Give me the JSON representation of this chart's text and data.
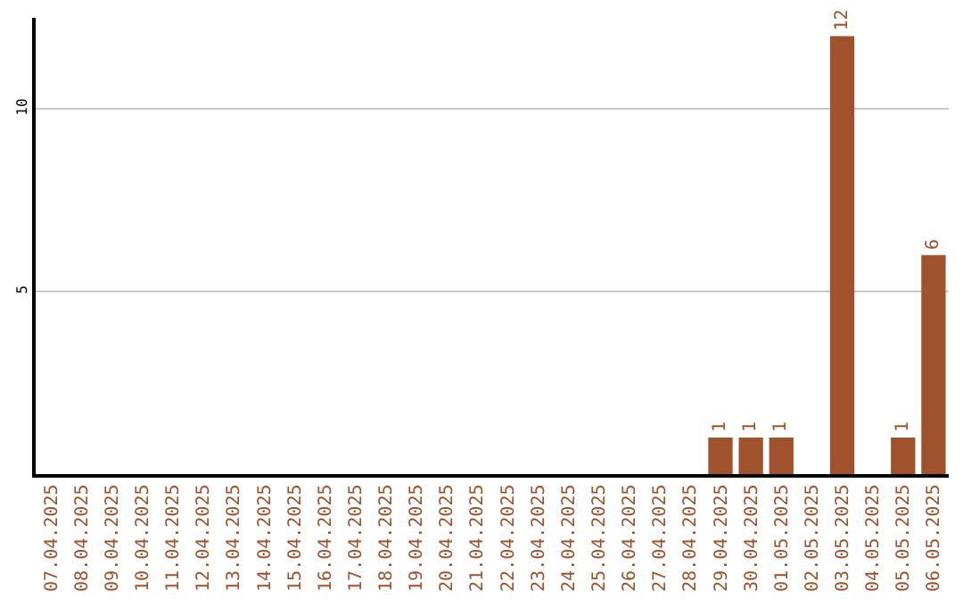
{
  "chart_data": {
    "type": "bar",
    "categories": [
      "07.04.2025",
      "08.04.2025",
      "09.04.2025",
      "10.04.2025",
      "11.04.2025",
      "12.04.2025",
      "13.04.2025",
      "14.04.2025",
      "15.04.2025",
      "16.04.2025",
      "17.04.2025",
      "18.04.2025",
      "19.04.2025",
      "20.04.2025",
      "21.04.2025",
      "22.04.2025",
      "23.04.2025",
      "24.04.2025",
      "25.04.2025",
      "26.04.2025",
      "27.04.2025",
      "28.04.2025",
      "29.04.2025",
      "30.04.2025",
      "01.05.2025",
      "02.05.2025",
      "03.05.2025",
      "04.05.2025",
      "05.05.2025",
      "06.05.2025"
    ],
    "values": [
      0,
      0,
      0,
      0,
      0,
      0,
      0,
      0,
      0,
      0,
      0,
      0,
      0,
      0,
      0,
      0,
      0,
      0,
      0,
      0,
      0,
      0,
      1,
      1,
      1,
      0,
      12,
      0,
      1,
      6
    ],
    "value_labels": [
      null,
      null,
      null,
      null,
      null,
      null,
      null,
      null,
      null,
      null,
      null,
      null,
      null,
      null,
      null,
      null,
      null,
      null,
      null,
      null,
      null,
      null,
      "1",
      "1",
      "1",
      null,
      "12",
      null,
      "1",
      "6"
    ],
    "color": "#a0522d",
    "ylim": [
      0,
      12.5
    ],
    "yticks": [
      5,
      10
    ],
    "grid": "y",
    "legend": false
  }
}
